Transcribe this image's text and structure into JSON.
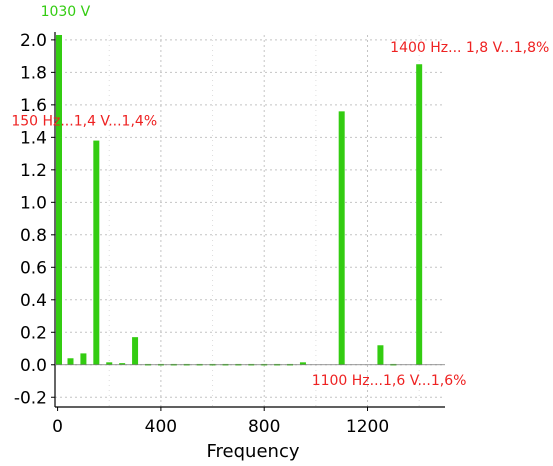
{
  "chart_data": {
    "type": "bar",
    "title": "",
    "xlabel": "Frequency",
    "ylabel": "",
    "xlim": [
      -10,
      1500
    ],
    "ylim": [
      -0.26,
      2.03
    ],
    "grid": true,
    "x_ticks": [
      0,
      400,
      800,
      1200
    ],
    "x_tick_labels": [
      "0",
      "400",
      "800",
      "1200"
    ],
    "y_ticks": [
      -0.2,
      0,
      0.2,
      0.4,
      0.6,
      0.8,
      1.0,
      1.2,
      1.4,
      1.6,
      1.8,
      2.0
    ],
    "y_tick_labels": [
      "-0.2",
      "0.0",
      "0.2",
      "0.4",
      "0.6",
      "0.8",
      "1.0",
      "1.2",
      "1.4",
      "1.6",
      "1.8",
      "2.0"
    ],
    "series": [
      {
        "x": [
          0,
          50,
          100,
          150,
          200,
          250,
          300,
          350,
          400,
          450,
          500,
          550,
          600,
          650,
          700,
          750,
          800,
          850,
          900,
          950,
          1000,
          1050,
          1100,
          1150,
          1200,
          1250,
          1300,
          1350,
          1400
        ],
        "values": [
          2.03,
          0.04,
          0.07,
          1.38,
          0.015,
          0.01,
          0.17,
          0.005,
          0.005,
          0.005,
          0.005,
          0.005,
          0.005,
          0.005,
          0.005,
          0.005,
          0.005,
          0.005,
          0.005,
          0.015,
          0,
          0,
          1.56,
          0,
          0,
          0.12,
          0.005,
          0,
          1.85
        ]
      }
    ],
    "bar_color": "#33cc11",
    "annotations": [
      {
        "text": "1030 V",
        "x": 0,
        "y": 2.03,
        "color": "#33cc11"
      },
      {
        "text": "150 Hz...1,4 V...1,4%",
        "x": 150,
        "y": 1.38,
        "color": "#ee2222"
      },
      {
        "text": "1100 Hz...1,6 V...1,6%",
        "x": 1100,
        "y": 0,
        "color": "#ee2222"
      },
      {
        "text": "1400 Hz... 1,8 V...1,8%",
        "x": 1400,
        "y": 1.85,
        "color": "#ee2222"
      }
    ]
  }
}
